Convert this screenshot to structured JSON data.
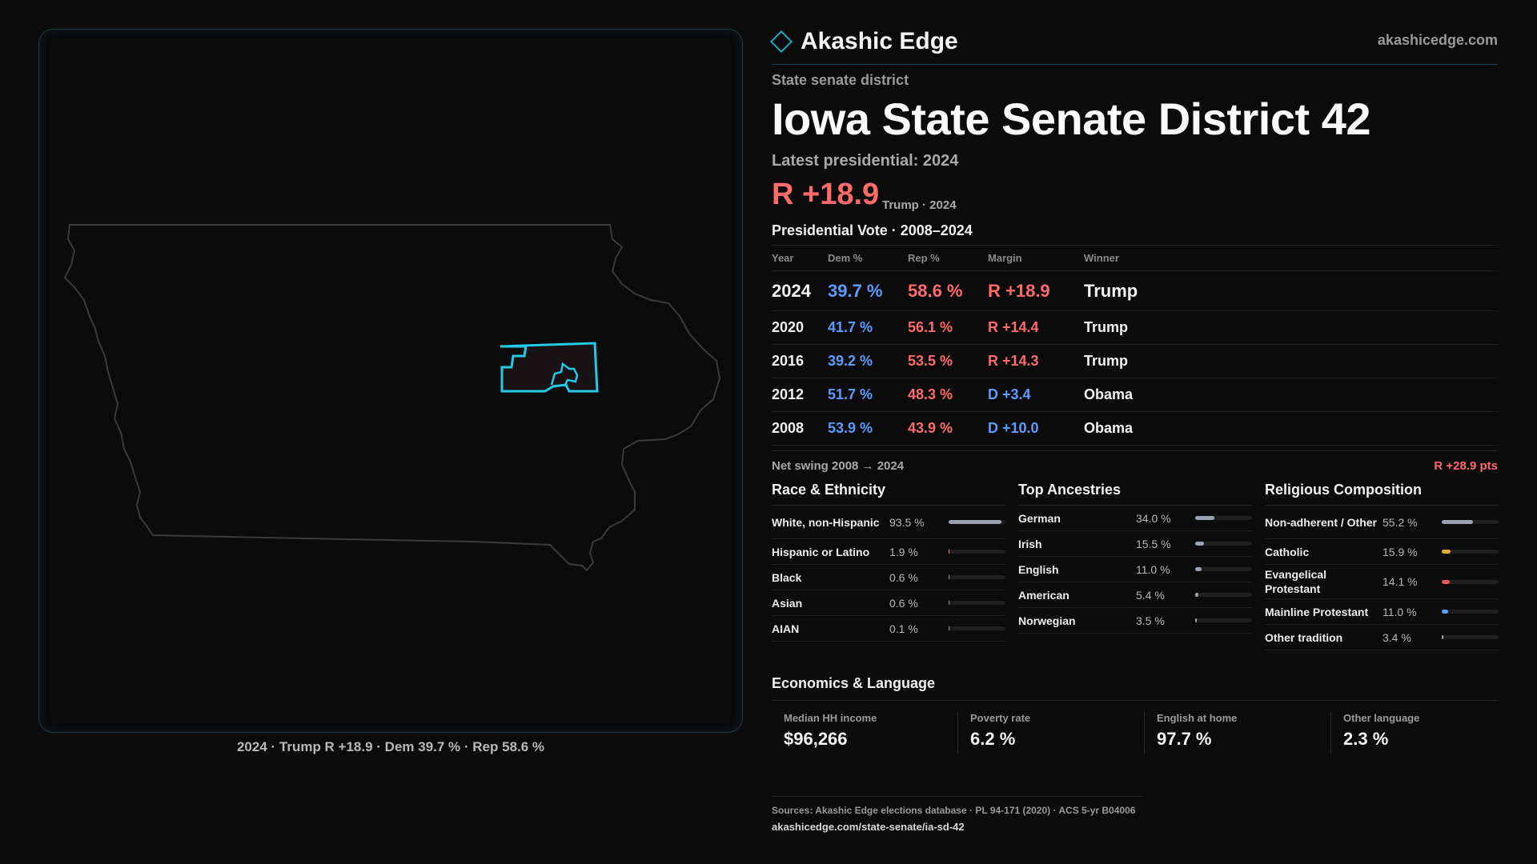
{
  "brand": {
    "name": "Akashic Edge",
    "site": "akashicedge.com",
    "accent": "#1ea6c2"
  },
  "page": {
    "kicker": "State senate district",
    "title": "Iowa State Senate District 42",
    "latest_label": "Latest presidential: 2024",
    "margin": "R +18.9",
    "margin_sub": "Trump · 2024",
    "vote_title": "Presidential Vote · 2008–2024"
  },
  "map": {
    "caption": "2024 · Trump R +18.9 · Dem 39.7 % · Rep 58.6 %",
    "highlight_color": "#23c9e6",
    "state_outline_color": "#3a3a3a"
  },
  "results": {
    "headers": [
      "Year",
      "Dem %",
      "Rep %",
      "Margin",
      "Winner"
    ],
    "rows": [
      {
        "year": "2024",
        "dem": "39.7 %",
        "rep": "58.6 %",
        "margin": "R +18.9",
        "party": "R",
        "winner": "Trump"
      },
      {
        "year": "2020",
        "dem": "41.7 %",
        "rep": "56.1 %",
        "margin": "R +14.4",
        "party": "R",
        "winner": "Trump"
      },
      {
        "year": "2016",
        "dem": "39.2 %",
        "rep": "53.5 %",
        "margin": "R +14.3",
        "party": "R",
        "winner": "Trump"
      },
      {
        "year": "2012",
        "dem": "51.7 %",
        "rep": "48.3 %",
        "margin": "D +3.4",
        "party": "D",
        "winner": "Obama"
      },
      {
        "year": "2008",
        "dem": "53.9 %",
        "rep": "43.9 %",
        "margin": "D +10.0",
        "party": "D",
        "winner": "Obama"
      }
    ],
    "swing_label": "Net swing 2008 → 2024",
    "swing_value": "R +28.9 pts"
  },
  "race": {
    "title": "Race & Ethnicity",
    "items": [
      {
        "label": "White, non-Hispanic",
        "pct": "93.5 %",
        "value": 93.5,
        "color": "#9aa3b2"
      },
      {
        "label": "Hispanic or Latino",
        "pct": "1.9 %",
        "value": 1.9,
        "color": "#e0b22e"
      },
      {
        "label": "Black",
        "pct": "0.6 %",
        "value": 0.6,
        "color": "#9aa3b2"
      },
      {
        "label": "Asian",
        "pct": "0.6 %",
        "value": 0.6,
        "color": "#9aa3b2"
      },
      {
        "label": "AIAN",
        "pct": "0.1 %",
        "value": 0.1,
        "color": "#9aa3b2"
      }
    ]
  },
  "ancestry": {
    "title": "Top Ancestries",
    "items": [
      {
        "label": "German",
        "pct": "34.0 %",
        "value": 34.0,
        "color": "#9aa3b2"
      },
      {
        "label": "Irish",
        "pct": "15.5 %",
        "value": 15.5,
        "color": "#9aa3b2"
      },
      {
        "label": "English",
        "pct": "11.0 %",
        "value": 11.0,
        "color": "#9aa3b2"
      },
      {
        "label": "American",
        "pct": "5.4 %",
        "value": 5.4,
        "color": "#9aa3b2"
      },
      {
        "label": "Norwegian",
        "pct": "3.5 %",
        "value": 3.5,
        "color": "#9aa3b2"
      }
    ]
  },
  "religion": {
    "title": "Religious Composition",
    "items": [
      {
        "label": "Non-adherent / Other",
        "pct": "55.2 %",
        "value": 55.2,
        "color": "#9aa3b2"
      },
      {
        "label": "Catholic",
        "pct": "15.9 %",
        "value": 15.9,
        "color": "#e0b22e"
      },
      {
        "label": "Evangelical Protestant",
        "pct": "14.1 %",
        "value": 14.1,
        "color": "#e0565b"
      },
      {
        "label": "Mainline Protestant",
        "pct": "11.0 %",
        "value": 11.0,
        "color": "#5b9dff"
      },
      {
        "label": "Other tradition",
        "pct": "3.4 %",
        "value": 3.4,
        "color": "#9aa3b2"
      }
    ]
  },
  "economics": {
    "title": "Economics & Language",
    "items": [
      {
        "label": "Median HH income",
        "value": "$96,266"
      },
      {
        "label": "Poverty rate",
        "value": "6.2 %"
      },
      {
        "label": "English at home",
        "value": "97.7 %"
      },
      {
        "label": "Other language",
        "value": "2.3 %"
      }
    ]
  },
  "footer": {
    "sources": "Sources: Akashic Edge elections database · PL 94-171 (2020) · ACS 5-yr B04006",
    "url": "akashicedge.com/state-senate/ia-sd-42"
  }
}
